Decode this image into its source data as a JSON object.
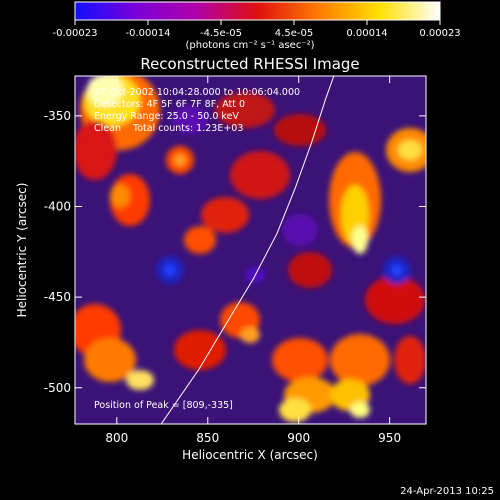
{
  "colorbar": {
    "ticks": [
      "-0.00023",
      "-0.00014",
      "-4.5e-05",
      "4.5e-05",
      "0.00014",
      "0.00023"
    ],
    "unit_label": "(photons cm⁻² s⁻¹ asec⁻²)",
    "colors": [
      "#1010ff",
      "#7a00d8",
      "#b000a8",
      "#e01010",
      "#ff7a00",
      "#ffe000",
      "#ffffff"
    ]
  },
  "chart_data": {
    "type": "heatmap",
    "title": "Reconstructed RHESSI Image",
    "xlabel": "Heliocentric X (arcsec)",
    "ylabel": "Heliocentric Y (arcsec)",
    "xlim": [
      777,
      970
    ],
    "ylim": [
      -520,
      -328
    ],
    "x_ticks": [
      800,
      850,
      900,
      950
    ],
    "y_ticks": [
      -350,
      -400,
      -450,
      -500
    ],
    "limb_curve": [
      [
        823,
        -522
      ],
      [
        845,
        -490
      ],
      [
        860,
        -465
      ],
      [
        875,
        -440
      ],
      [
        888,
        -415
      ],
      [
        898,
        -390
      ],
      [
        907,
        -365
      ],
      [
        915,
        -340
      ],
      [
        920,
        -326
      ]
    ],
    "annotations": {
      "time": "27-Oct-2002 10:04:28.000 to 10:06:04.000",
      "detectors": "Detectors: 4F 5F 6F 7F 8F, Att 0",
      "energy": "Energy Range: 25.0 - 50.0 keV",
      "clean": "Clean",
      "counts": "Total counts: 1.23E+03",
      "peak": "Position of Peak = [809,-335]"
    }
  },
  "footer": {
    "timestamp": "24-Apr-2013 10:25"
  }
}
